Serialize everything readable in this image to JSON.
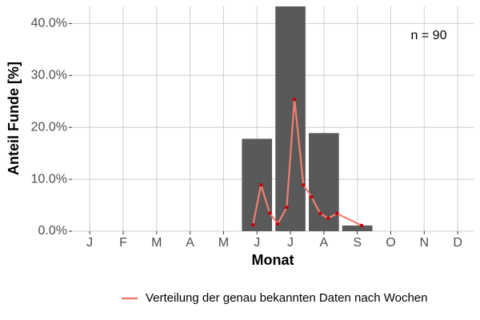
{
  "chart_data": {
    "type": "bar",
    "categories": [
      "J",
      "F",
      "M",
      "A",
      "M",
      "J",
      "J",
      "A",
      "S",
      "O",
      "N",
      "D"
    ],
    "values": [
      0,
      0,
      0,
      0,
      0,
      17.8,
      43.3,
      18.9,
      1.1,
      0,
      0,
      0
    ],
    "color": "#595959",
    "x_label": "Monat",
    "y_label": "Anteil Funde [%]",
    "annotation": "n = 90",
    "xlim": [
      0.47,
      12.5
    ],
    "ylim": [
      0,
      43.3
    ],
    "yticks": [
      {
        "value": 0,
        "label": "0.0%"
      },
      {
        "value": 10,
        "label": "10.0%"
      },
      {
        "value": 20,
        "label": "20.0%"
      },
      {
        "value": 30,
        "label": "30.0%"
      },
      {
        "value": 40,
        "label": "40.0%"
      }
    ],
    "grid": true,
    "legend": "bottom",
    "series": [
      {
        "type": "line",
        "name": "Verteilung der genau bekannten Daten nach Wochen",
        "color": "#f07f72",
        "marker_color": "#cc0000",
        "x": [
          5.88,
          6.12,
          6.38,
          6.62,
          6.89,
          7.12,
          7.39,
          7.63,
          7.89,
          8.13,
          8.39,
          9.13
        ],
        "values": [
          1.2,
          8.9,
          3.5,
          1.4,
          4.6,
          25.4,
          8.9,
          6.6,
          3.4,
          2.5,
          3.4,
          1.1
        ]
      }
    ]
  }
}
